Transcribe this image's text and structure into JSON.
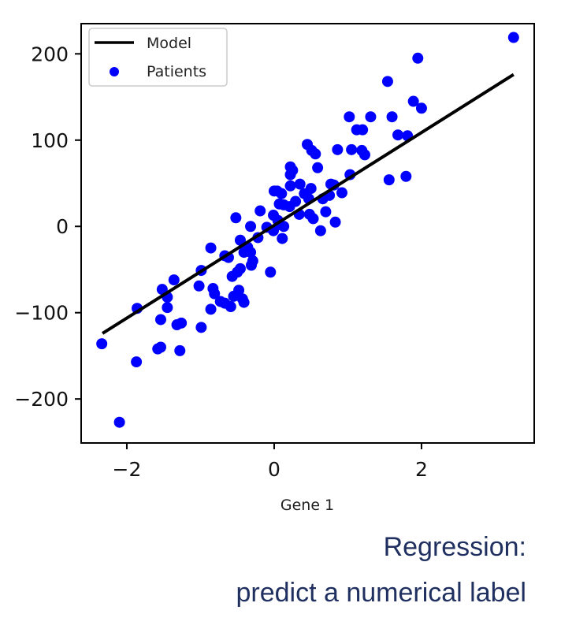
{
  "chart_data": {
    "type": "scatter",
    "xlabel": "Gene 1",
    "ylabel": "",
    "xlim": [
      -2.62,
      3.53
    ],
    "ylim": [
      -251,
      235
    ],
    "xticks": [
      -2,
      0,
      2
    ],
    "yticks": [
      -200,
      -100,
      0,
      100,
      200
    ],
    "xtick_labels": [
      "−2",
      "0",
      "2"
    ],
    "ytick_labels": [
      "−200",
      "−100",
      "0",
      "100",
      "200"
    ],
    "grid": false,
    "legend": {
      "placement": "top-left",
      "entries": [
        "Model",
        "Patients"
      ]
    },
    "series": [
      {
        "name": "Model",
        "kind": "line",
        "color": "#000000",
        "x": [
          -2.33,
          3.25
        ],
        "y": [
          -124,
          176
        ]
      },
      {
        "name": "Patients",
        "kind": "scatter",
        "color": "#0000ff",
        "x": [
          3.25,
          1.95,
          1.54,
          1.89,
          2.0,
          1.02,
          1.31,
          1.6,
          1.12,
          1.2,
          1.68,
          1.81,
          0.45,
          0.86,
          1.05,
          1.19,
          0.51,
          0.56,
          1.23,
          0.22,
          0.25,
          0.59,
          0.22,
          1.03,
          1.56,
          1.79,
          0.35,
          0.22,
          0.77,
          0.81,
          0.04,
          0.1,
          0.0,
          0.5,
          0.41,
          0.92,
          0.47,
          0.66,
          0.07,
          0.13,
          0.21,
          0.29,
          0.75,
          0.34,
          -0.19,
          -0.52,
          -0.01,
          0.05,
          0.07,
          0.13,
          0.48,
          0.53,
          0.83,
          0.7,
          0.63,
          -0.1,
          -0.01,
          -0.32,
          0.11,
          -0.22,
          -0.46,
          -0.36,
          -0.32,
          -0.86,
          -0.41,
          -0.67,
          -0.62,
          -0.29,
          -0.31,
          -0.5,
          -0.46,
          -0.57,
          -0.05,
          -0.99,
          -1.36,
          -0.83,
          -0.81,
          -0.48,
          -1.02,
          -0.55,
          -0.73,
          -0.67,
          -0.43,
          -0.41,
          -0.59,
          -0.86,
          -1.52,
          -1.45,
          -1.45,
          -1.86,
          -1.32,
          -1.26,
          -1.54,
          -0.99,
          -1.58,
          -1.54,
          -1.28,
          -2.34,
          -1.87,
          -2.1
        ],
        "y": [
          219,
          195,
          168,
          145,
          137,
          127,
          127,
          127,
          112,
          112,
          106,
          105,
          95,
          89,
          89,
          88,
          88,
          84,
          83,
          69,
          65,
          68,
          60,
          60,
          54,
          58,
          49,
          47,
          49,
          48,
          41,
          38,
          41,
          44,
          38,
          39,
          32,
          32,
          26,
          25,
          23,
          29,
          36,
          14,
          18,
          10,
          13,
          7,
          2,
          0,
          14,
          9,
          5,
          17,
          -5,
          -1,
          -5,
          0,
          -14,
          -13,
          -16,
          -24,
          -30,
          -25,
          -30,
          -34,
          -36,
          -40,
          -45,
          -53,
          -49,
          -58,
          -53,
          -51,
          -62,
          -72,
          -78,
          -74,
          -69,
          -81,
          -87,
          -89,
          -84,
          -88,
          -93,
          -96,
          -73,
          -82,
          -94,
          -95,
          -114,
          -112,
          -108,
          -117,
          -142,
          -140,
          -144,
          -136,
          -157,
          -227
        ]
      }
    ]
  },
  "caption": {
    "line1": "Regression:",
    "line2": "predict a numerical label"
  }
}
